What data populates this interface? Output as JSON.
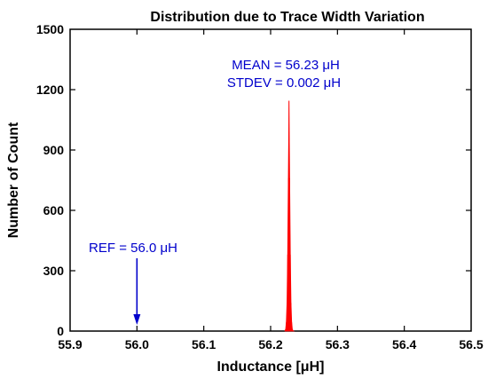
{
  "chart_data": {
    "type": "area",
    "title": "Distribution due to Trace Width Variation",
    "xlabel": "Inductance [μH]",
    "ylabel": "Number of Count",
    "xlim": [
      55.9,
      56.5
    ],
    "ylim": [
      0,
      1500
    ],
    "xticks": [
      "55.9",
      "56.0",
      "56.1",
      "56.2",
      "56.3",
      "56.4",
      "56.5"
    ],
    "yticks": [
      "0",
      "300",
      "600",
      "900",
      "1200",
      "1500"
    ],
    "grid": false,
    "series": [
      {
        "color": "#ff0000",
        "x": [
          56.2215,
          56.2225,
          56.2235,
          56.2245,
          56.2255,
          56.2265,
          56.2275,
          56.2285,
          56.2295,
          56.2305,
          56.2315,
          56.2325,
          56.2335,
          56.2345
        ],
        "y": [
          2,
          10,
          45,
          140,
          380,
          760,
          1145,
          760,
          380,
          140,
          45,
          10,
          2,
          0
        ]
      }
    ],
    "annotations": {
      "mean": "MEAN = 56.23 μH",
      "stdev": "STDEV = 0.002 μH",
      "ref": "REF = 56.0 μH",
      "ref_x": 56.0,
      "color": "#0000cc"
    }
  }
}
